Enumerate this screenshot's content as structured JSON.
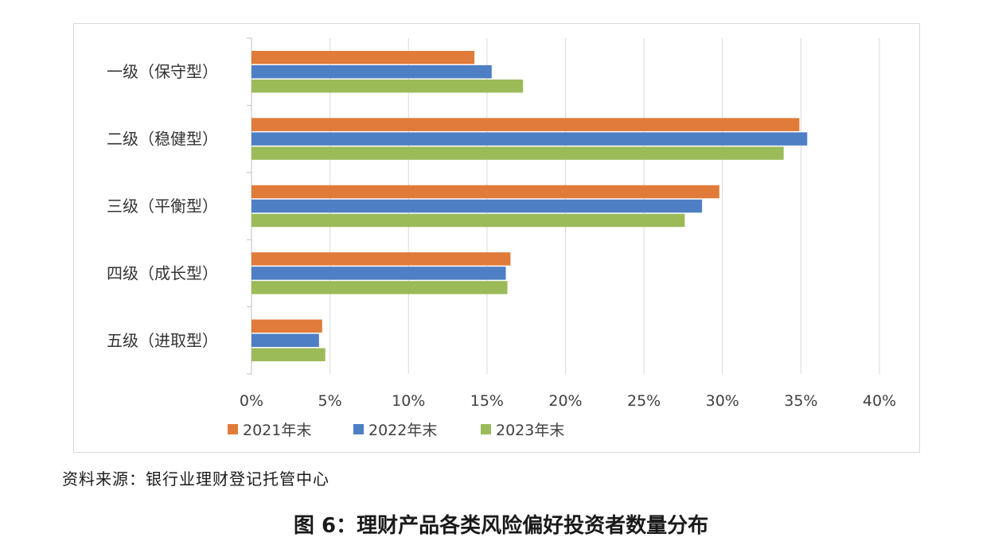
{
  "chart_data": {
    "type": "bar",
    "orientation": "horizontal",
    "categories": [
      "一级（保守型）",
      "二级（稳健型）",
      "三级（平衡型）",
      "四级（成长型）",
      "五级（进取型）"
    ],
    "series": [
      {
        "name": "2021年末",
        "color": "#e07b39",
        "values": [
          14.2,
          34.9,
          29.8,
          16.5,
          4.5
        ]
      },
      {
        "name": "2022年末",
        "color": "#4e7fc4",
        "values": [
          15.3,
          35.4,
          28.7,
          16.2,
          4.3
        ]
      },
      {
        "name": "2023年末",
        "color": "#9bbb59",
        "values": [
          17.3,
          33.9,
          27.6,
          16.3,
          4.7
        ]
      }
    ],
    "xlim": [
      0,
      40
    ],
    "xticks": [
      "0%",
      "5%",
      "10%",
      "15%",
      "20%",
      "25%",
      "30%",
      "35%",
      "40%"
    ],
    "grid": true,
    "legend_position": "bottom-left"
  },
  "source": "资料来源：银行业理财登记托管中心",
  "figure_title": "图 6：理财产品各类风险偏好投资者数量分布"
}
